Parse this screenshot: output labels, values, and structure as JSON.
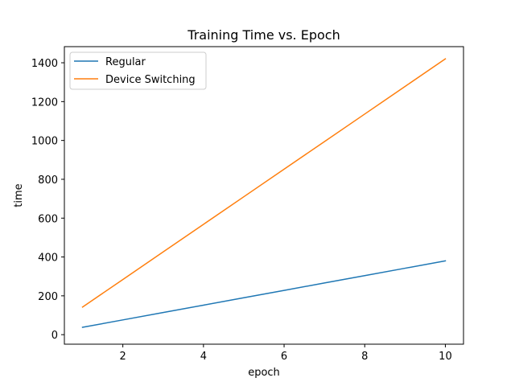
{
  "chart_data": {
    "type": "line",
    "title": "Training Time vs. Epoch",
    "xlabel": "epoch",
    "ylabel": "time",
    "x": [
      1,
      2,
      3,
      4,
      5,
      6,
      7,
      8,
      9,
      10
    ],
    "xlim": [
      0.55,
      10.45
    ],
    "ylim": [
      -49,
      1483
    ],
    "xticks": [
      2,
      4,
      6,
      8,
      10
    ],
    "yticks": [
      0,
      200,
      400,
      600,
      800,
      1000,
      1200,
      1400
    ],
    "grid": false,
    "legend_position": "top-left",
    "series": [
      {
        "name": "Regular",
        "color": "#1f77b4",
        "values": [
          38,
          76,
          114,
          152,
          190,
          228,
          266,
          304,
          342,
          380
        ]
      },
      {
        "name": "Device Switching",
        "color": "#ff7f0e",
        "values": [
          142,
          284,
          426,
          568,
          710,
          852,
          994,
          1136,
          1278,
          1420
        ]
      }
    ]
  }
}
